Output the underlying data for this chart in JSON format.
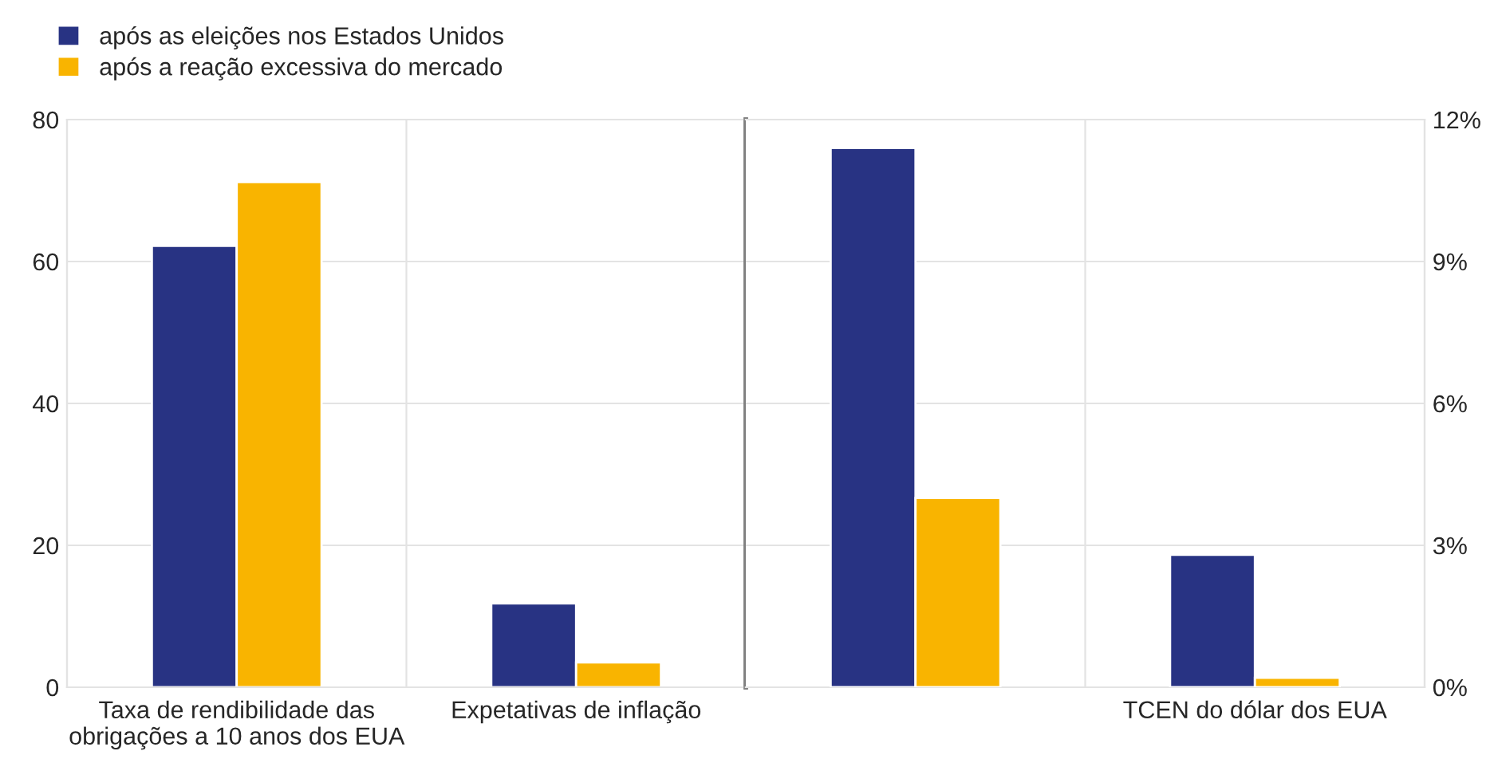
{
  "chart_data": [
    {
      "type": "bar",
      "categories": [
        "Taxa de rendibilidade das\nobrigações a 10 anos dos EUA",
        "Expetativas de inflação"
      ],
      "series": [
        {
          "name": "após as eleições nos Estados Unidos",
          "color": "#283383",
          "values": [
            62.2,
            11.8
          ]
        },
        {
          "name": "após a reação excessiva do mercado",
          "color": "#f9b400",
          "values": [
            71.2,
            3.5
          ]
        }
      ],
      "ylim": [
        0,
        80
      ],
      "yticks": [
        0,
        20,
        40,
        60,
        80
      ],
      "grid": true,
      "legend": "top left"
    },
    {
      "type": "bar",
      "categories": [
        null,
        "TCEN do dólar dos EUA"
      ],
      "series": [
        {
          "color": "#283383",
          "values": [
            11.4,
            2.8
          ],
          "axis": "y2"
        },
        {
          "color": "#f9b400",
          "values": [
            4.0,
            0.2
          ],
          "axis": "y2"
        }
      ],
      "y2lim": [
        0,
        12
      ],
      "y2ticks": [
        {
          "value": 0,
          "label": "0%"
        },
        {
          "value": 3,
          "label": "3%"
        },
        {
          "value": 6,
          "label": "6%"
        },
        {
          "value": 9,
          "label": "9%"
        },
        {
          "value": 12,
          "label": "12%"
        }
      ],
      "grid": true
    }
  ]
}
